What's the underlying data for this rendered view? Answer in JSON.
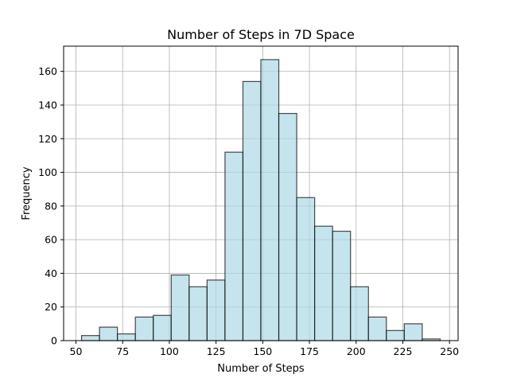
{
  "chart_data": {
    "type": "bar",
    "title": "Number of Steps in 7D Space",
    "xlabel": "Number of Steps",
    "ylabel": "Frequency",
    "xlim": [
      43.4,
      254.6
    ],
    "ylim": [
      0,
      175
    ],
    "xticks": [
      50,
      75,
      100,
      125,
      150,
      175,
      200,
      225,
      250
    ],
    "yticks": [
      0,
      20,
      40,
      60,
      80,
      100,
      120,
      140,
      160
    ],
    "bin_edges": [
      53,
      62.6,
      72.2,
      81.8,
      91.4,
      101,
      110.6,
      120.2,
      129.8,
      139.4,
      149,
      158.6,
      168.2,
      177.8,
      187.4,
      197,
      206.6,
      216.2,
      225.8,
      235.4,
      245
    ],
    "values": [
      3,
      8,
      4,
      14,
      15,
      39,
      32,
      36,
      112,
      154,
      167,
      135,
      85,
      68,
      65,
      32,
      14,
      6,
      10,
      1
    ],
    "grid": true,
    "bar_color": "#add8e6",
    "edge_color": "#000000"
  }
}
